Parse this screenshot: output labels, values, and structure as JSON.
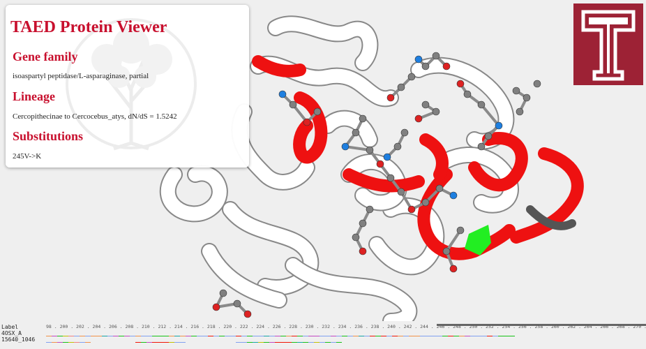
{
  "panel": {
    "title": "TAED Protein Viewer",
    "sections": [
      {
        "heading": "Gene family",
        "text": "isoaspartyl peptidase/L-asparaginase, partial"
      },
      {
        "heading": "Lineage",
        "text": "Cercopithecinae to Cercocebus_atys, dN/dS = 1.5242"
      },
      {
        "heading": "Substitutions",
        "text": "245V->K"
      }
    ]
  },
  "logo": {
    "icon": "temple-t-logo",
    "letter": "T",
    "color": "#9d2235"
  },
  "structure": {
    "icon": "protein-cartoon-3d",
    "colors": {
      "ribbon": "#ffffff",
      "selected_lineage": "#ee1111",
      "highlight": "#22ee22",
      "gap": "#555555",
      "carbon": "#808080",
      "oxygen": "#dd2222",
      "nitrogen": "#1e7fe0"
    }
  },
  "alignment": {
    "label_header": "Label",
    "ruler": "98 . 200 . 202 . 204 . 206 . 208 . 210 . 212 . 214 . 216 . 218 . 220 . 222 . 224 . 226 . 228 . 230 . 232 . 234 . 236 . 238 . 240 . 242 . 244 . 246 . 248 . 250 . 252 . 254 . 256 . 258 . 260 . 262 . 264 . 266 . 268 . 270 . 272 . 274 . 276 . 278 . 280 . 282",
    "sequences": [
      {
        "label": "4OSX_A",
        "residues": "GDSPCLGAGGYADNDIGAVSTTGHGESILKVNLARLTLFHIEQGKTVEEAADLSLGYMKSRVKGLGGLIVVSKTGDWVAKWTST"
      },
      {
        "label": "15640_1046",
        "residues": "IGDTPCVG--------RTEKKKPLL---------LFSHPQEKKKNYSLPLSLS-------------------------------"
      }
    ]
  }
}
